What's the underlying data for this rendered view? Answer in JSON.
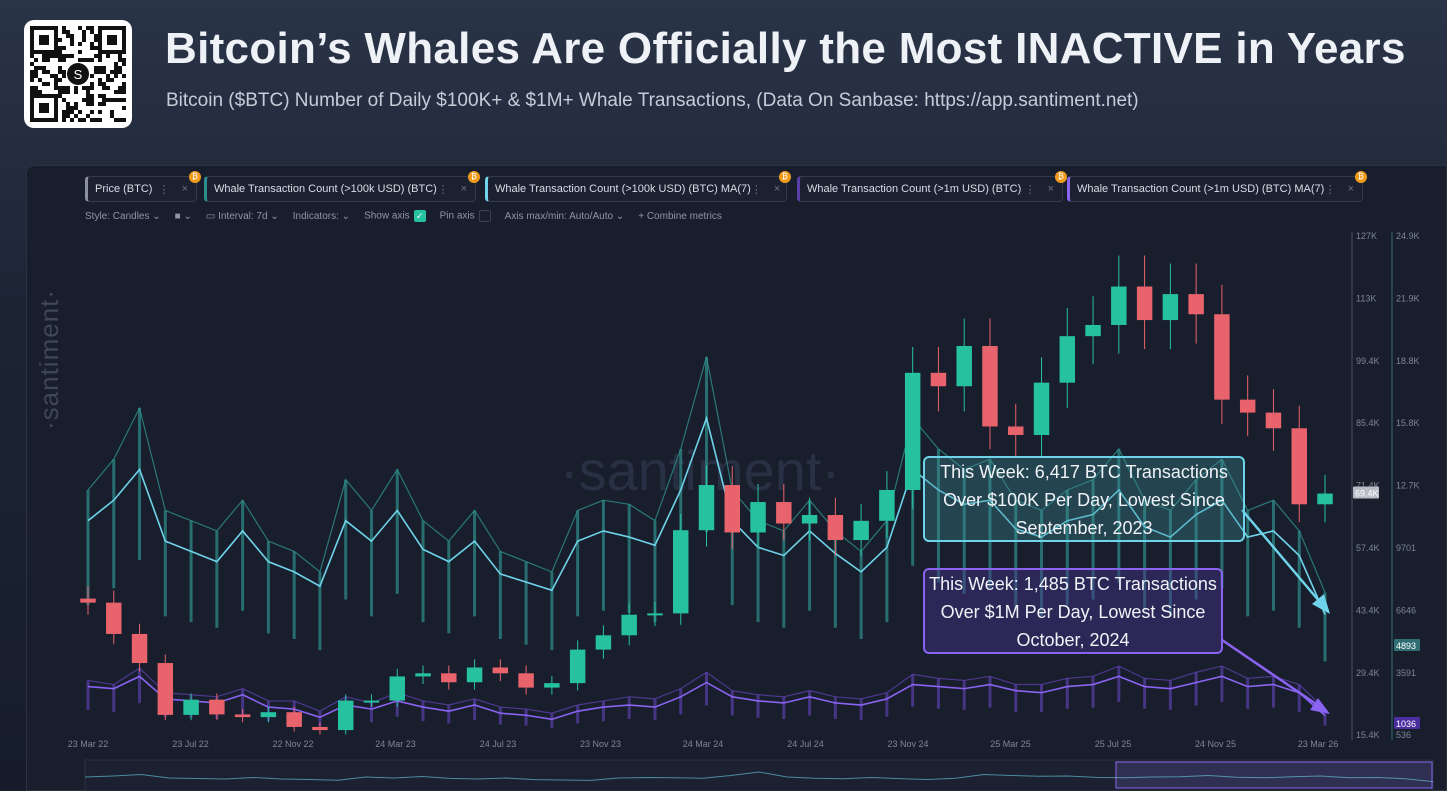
{
  "header": {
    "title": "Bitcoin’s Whales Are Officially the Most INACTIVE in Years",
    "subtitle": "Bitcoin ($BTC) Number of Daily $100K+ & $1M+ Whale Transactions, (Data On Sanbase: https://app.santiment.net)",
    "qr_logo": "S"
  },
  "metrics": [
    {
      "label": "Price (BTC)",
      "color": "#8a919e"
    },
    {
      "label": "Whale Transaction Count (>100k USD) (BTC)",
      "color": "#2f8f8c"
    },
    {
      "label": "Whale Transaction Count (>100k USD) (BTC) MA(7)",
      "color": "#6fd3ea"
    },
    {
      "label": "Whale Transaction Count (>1m USD) (BTC)",
      "color": "#5a3fa8"
    },
    {
      "label": "Whale Transaction Count (>1m USD) (BTC) MA(7)",
      "color": "#8a63f0"
    }
  ],
  "toolbar": {
    "style": "Style: Candles",
    "interval": "Interval: 7d",
    "indicators": "Indicators:",
    "show_axis": "Show axis",
    "show_axis_checked": true,
    "pin_axis": "Pin axis",
    "pin_axis_checked": false,
    "axis_minmax": "Axis max/min: Auto/Auto",
    "combine": "+ Combine metrics"
  },
  "watermark": "·santiment·",
  "annotations": {
    "a1": "This Week: 6,417 BTC Transactions Over $100K Per Day, Lowest Since September, 2023",
    "a2": "This Week: 1,485 BTC Transactions Over $1M Per Day, Lowest Since October, 2024"
  },
  "chart_data": {
    "type": "line",
    "x_ticks": [
      "23 Mar 22",
      "23 Jul 22",
      "22 Nov 22",
      "24 Mar 23",
      "24 Jul 23",
      "23 Nov 23",
      "24 Mar 24",
      "24 Jul 24",
      "23 Nov 24",
      "25 Mar 25",
      "25 Jul 25",
      "24 Nov 25",
      "23 Mar 26"
    ],
    "price_axis": {
      "ticks": [
        "127K",
        "113K",
        "99.4K",
        "85.4K",
        "71.4K",
        "57.4K",
        "43.4K",
        "29.4K",
        "15.4K"
      ],
      "range": [
        15400,
        127000
      ],
      "current": "69.4K"
    },
    "count_axis": {
      "ticks": [
        "24.9K",
        "21.9K",
        "18.8K",
        "15.8K",
        "12.7K",
        "9701",
        "6646",
        "3591",
        "536"
      ],
      "range": [
        536,
        24900
      ],
      "current_100k": "4893",
      "current_1m": "1036"
    },
    "months": [
      "2022-03",
      "2022-04",
      "2022-05",
      "2022-06",
      "2022-07",
      "2022-08",
      "2022-09",
      "2022-10",
      "2022-11",
      "2022-12",
      "2023-01",
      "2023-02",
      "2023-03",
      "2023-04",
      "2023-05",
      "2023-06",
      "2023-07",
      "2023-08",
      "2023-09",
      "2023-10",
      "2023-11",
      "2023-12",
      "2024-01",
      "2024-02",
      "2024-03",
      "2024-04",
      "2024-05",
      "2024-06",
      "2024-07",
      "2024-08",
      "2024-09",
      "2024-10",
      "2024-11",
      "2024-12",
      "2025-01",
      "2025-02",
      "2025-03",
      "2025-04",
      "2025-05",
      "2025-06",
      "2025-07",
      "2025-08",
      "2025-09",
      "2025-10",
      "2025-11",
      "2025-12",
      "2026-01",
      "2026-02",
      "2026-03"
    ],
    "series": [
      {
        "name": "Price (BTC)",
        "type": "candles",
        "values": [
          45000,
          38000,
          31500,
          19900,
          23300,
          20000,
          19400,
          20500,
          17200,
          16500,
          23100,
          23100,
          28500,
          29200,
          27200,
          30500,
          29200,
          26000,
          27000,
          34500,
          37700,
          42300,
          42600,
          61200,
          71300,
          60700,
          67500,
          62700,
          64600,
          59000,
          63300,
          70200,
          96400,
          93400,
          102400,
          84400,
          82500,
          94200,
          104600,
          107100,
          115700,
          108200,
          114000,
          109500,
          90400,
          87500,
          84000,
          67000,
          69400
        ]
      },
      {
        "name": "Whale Transaction Count (>100k USD) (BTC)",
        "values": [
          12500,
          14000,
          16500,
          11500,
          11000,
          10500,
          12000,
          10000,
          9500,
          8500,
          13000,
          11500,
          13500,
          11000,
          10000,
          11500,
          9500,
          9000,
          8500,
          11500,
          12000,
          11800,
          11000,
          14500,
          19000,
          12500,
          11000,
          10500,
          12000,
          10500,
          9500,
          11000,
          16000,
          14500,
          13500,
          14000,
          12000,
          11500,
          12500,
          13000,
          14500,
          12000,
          11500,
          13000,
          14000,
          11500,
          12000,
          10500,
          7500
        ]
      },
      {
        "name": "Whale Transaction Count (>100k USD) (BTC) MA(7)",
        "values": [
          11000,
          12000,
          13500,
          10000,
          9500,
          9000,
          10500,
          9000,
          8500,
          7800,
          11000,
          10000,
          11500,
          9600,
          9000,
          10000,
          8400,
          8000,
          7600,
          10000,
          10500,
          10200,
          9800,
          12500,
          16000,
          11000,
          9700,
          9300,
          10500,
          9400,
          8500,
          9700,
          13500,
          12500,
          11800,
          12000,
          10600,
          10200,
          11000,
          11300,
          12500,
          10700,
          10200,
          11300,
          12000,
          10200,
          10500,
          9300,
          6417
        ]
      },
      {
        "name": "Whale Transaction Count (>1m USD) (BTC)",
        "values": [
          3200,
          3000,
          3800,
          2600,
          2500,
          2400,
          2800,
          2200,
          2200,
          1700,
          2400,
          2100,
          2600,
          2200,
          2000,
          2300,
          1900,
          1800,
          1600,
          2000,
          2200,
          2400,
          2300,
          2800,
          3600,
          2700,
          2500,
          2400,
          2700,
          2400,
          2300,
          2600,
          3500,
          3300,
          3200,
          3400,
          3000,
          3000,
          3300,
          3400,
          3900,
          3300,
          3200,
          3600,
          3900,
          3300,
          3400,
          3000,
          1800
        ]
      },
      {
        "name": "Whale Transaction Count (>1m USD) (BTC) MA(7)",
        "values": [
          2900,
          2800,
          3400,
          2300,
          2200,
          2100,
          2500,
          1900,
          1800,
          1400,
          2000,
          1800,
          2200,
          1900,
          1700,
          2000,
          1600,
          1500,
          1300,
          1700,
          1900,
          2000,
          1900,
          2400,
          3100,
          2400,
          2200,
          2100,
          2400,
          2100,
          2000,
          2300,
          3000,
          2900,
          2800,
          3000,
          2700,
          2600,
          2900,
          3000,
          3400,
          2900,
          2800,
          3100,
          3400,
          2900,
          3000,
          2600,
          1485
        ]
      }
    ],
    "colors": {
      "up": "#26c2a0",
      "down": "#e8636b"
    }
  }
}
